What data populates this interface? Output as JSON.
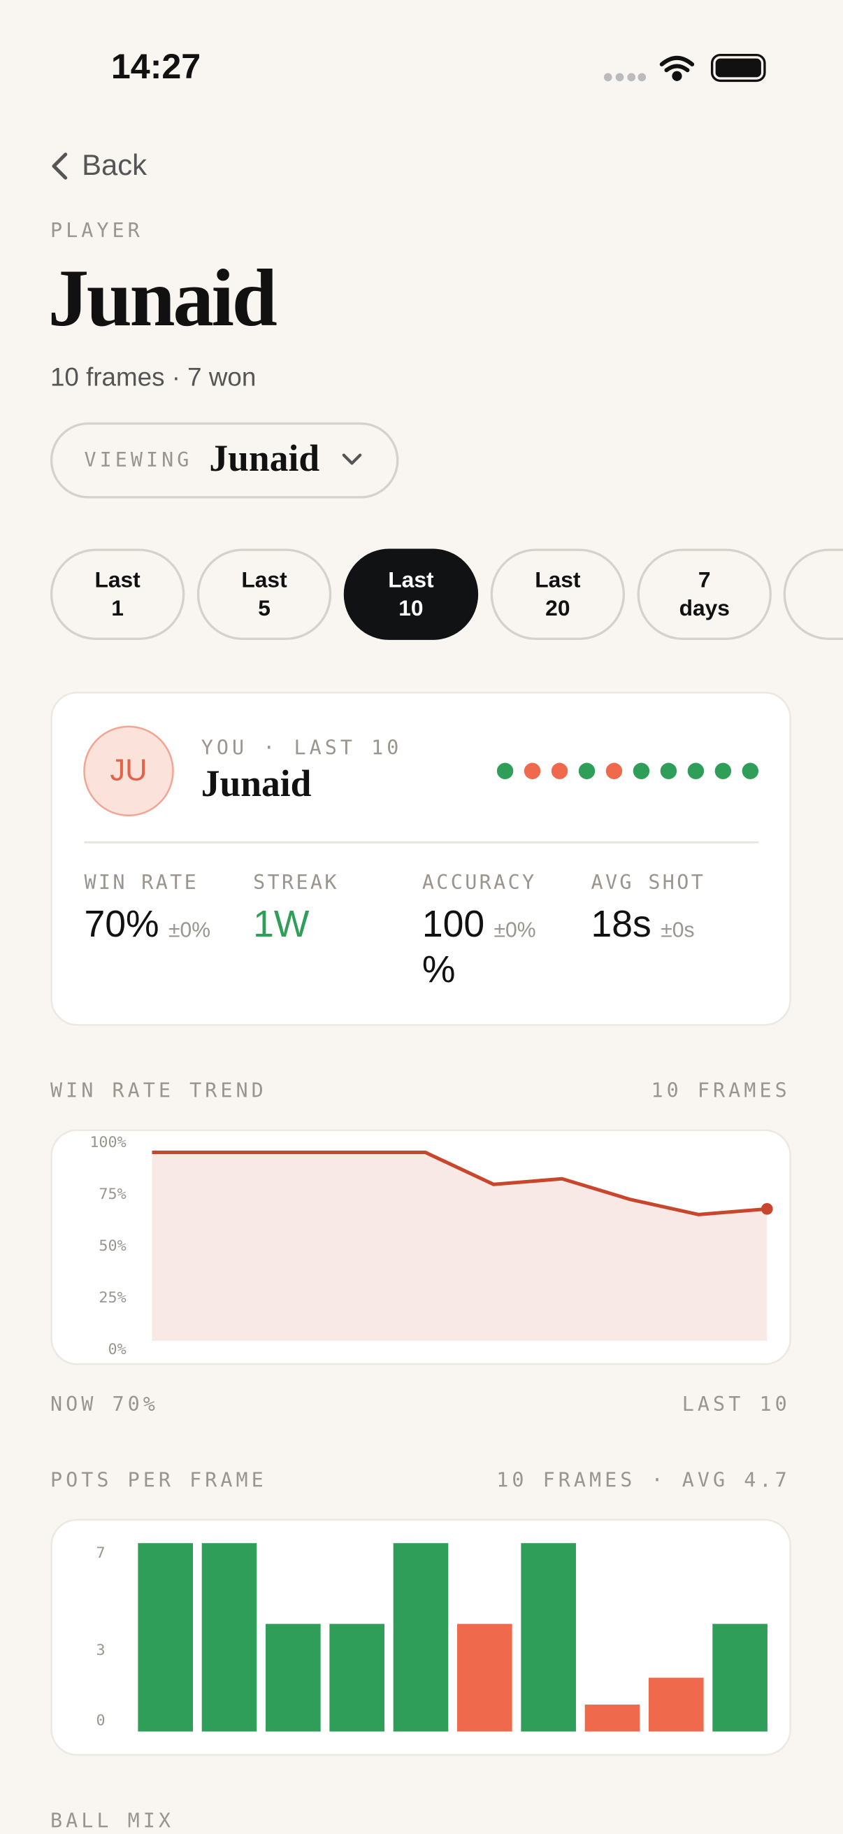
{
  "status_bar": {
    "time": "14:27"
  },
  "nav": {
    "back": "Back"
  },
  "header": {
    "eyebrow": "PLAYER",
    "title": "Junaid",
    "subtitle": "10 frames · 7 won"
  },
  "viewing": {
    "label": "VIEWING",
    "value": "Junaid"
  },
  "filters": {
    "options": [
      [
        "Last",
        "1"
      ],
      [
        "Last",
        "5"
      ],
      [
        "Last",
        "10"
      ],
      [
        "Last",
        "20"
      ],
      [
        "7",
        "days"
      ]
    ],
    "active": 2
  },
  "summary": {
    "avatar": "JU",
    "eyebrow": "YOU · LAST 10",
    "name": "Junaid",
    "results": [
      "W",
      "L",
      "L",
      "W",
      "L",
      "W",
      "W",
      "W",
      "W",
      "W"
    ],
    "win_color": "#2e9e58",
    "loss_color": "#ef6a4c",
    "stats": [
      {
        "label": "WIN RATE",
        "value_lines": [
          "70%"
        ],
        "delta": "±0%"
      },
      {
        "label": "STREAK",
        "value_lines": [
          "1W"
        ],
        "highlight": true
      },
      {
        "label": "ACCURACY",
        "value_lines": [
          "100",
          "%"
        ],
        "delta": "±0%"
      },
      {
        "label": "AVG SHOT",
        "value_lines": [
          "18s"
        ],
        "delta": "±0s"
      }
    ]
  },
  "win_rate_trend": {
    "type": "line",
    "title": "WIN RATE TREND",
    "note": "10 FRAMES",
    "values": [
      100,
      100,
      100,
      100,
      100,
      83,
      86,
      75,
      67,
      70
    ],
    "color": "#c8472c",
    "fill": "#f9e9e6",
    "ylim": [
      0,
      100
    ],
    "yticks": [
      {
        "value": 100,
        "label": "100%"
      },
      {
        "value": 75,
        "label": "75%"
      },
      {
        "value": 50,
        "label": "50%"
      },
      {
        "value": 25,
        "label": "25%"
      },
      {
        "value": 0,
        "label": "0%"
      }
    ],
    "footer_left": "NOW 70%",
    "footer_right": "LAST 10"
  },
  "pots_per_frame": {
    "type": "bar",
    "title": "POTS PER FRAME",
    "note": "10 FRAMES · AVG 4.7",
    "values": [
      7,
      7,
      4,
      4,
      7,
      4,
      7,
      1,
      2,
      4
    ],
    "colors": [
      "#2e9e58",
      "#2e9e58",
      "#2e9e58",
      "#2e9e58",
      "#2e9e58",
      "#ef6a4c",
      "#2e9e58",
      "#ef6a4c",
      "#ef6a4c",
      "#2e9e58"
    ],
    "ylim": [
      0,
      7
    ],
    "yticks": [
      7,
      3,
      0
    ]
  },
  "next_section": {
    "title": "BALL MIX"
  }
}
